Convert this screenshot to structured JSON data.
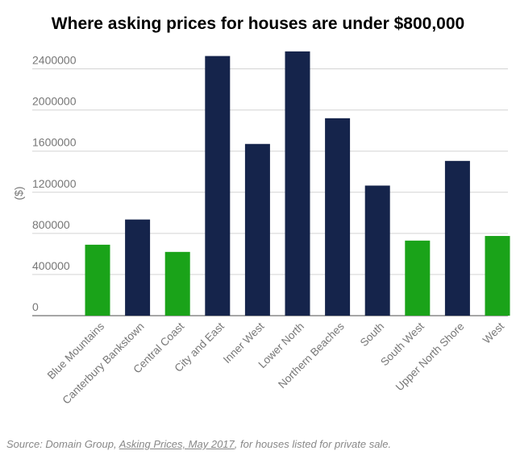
{
  "colors": {
    "navy": "#15244b",
    "green": "#1aa319",
    "grid": "#d4d4d4",
    "axis_text": "#777777"
  },
  "chart_data": {
    "type": "bar",
    "title": "Where asking prices for houses are under $800,000",
    "ylabel": "($)",
    "xlabel": "",
    "ylim": [
      0,
      2600000
    ],
    "yticks": [
      0,
      400000,
      800000,
      1200000,
      1600000,
      2000000,
      2400000
    ],
    "ytick_labels": [
      "0",
      "400000",
      "800000",
      "1200000",
      "1600000",
      "2000000",
      "2400000"
    ],
    "grid": true,
    "legend": "none",
    "categories": [
      "Blue Mountains",
      "Canterbury Bankstown",
      "Central Coast",
      "City and East",
      "Inner West",
      "Lower North",
      "Northern Beaches",
      "South",
      "South West",
      "Upper North Shore",
      "West"
    ],
    "values": [
      690000,
      935000,
      620000,
      2525000,
      1670000,
      2570000,
      1920000,
      1265000,
      730000,
      1505000,
      775000
    ],
    "bar_colors": [
      "#1aa319",
      "#15244b",
      "#1aa319",
      "#15244b",
      "#15244b",
      "#15244b",
      "#15244b",
      "#15244b",
      "#1aa319",
      "#15244b",
      "#1aa319"
    ]
  },
  "source": {
    "prefix": "Source: Domain Group, ",
    "link": "Asking Prices, May 2017",
    "suffix": ", for houses listed for private sale."
  }
}
